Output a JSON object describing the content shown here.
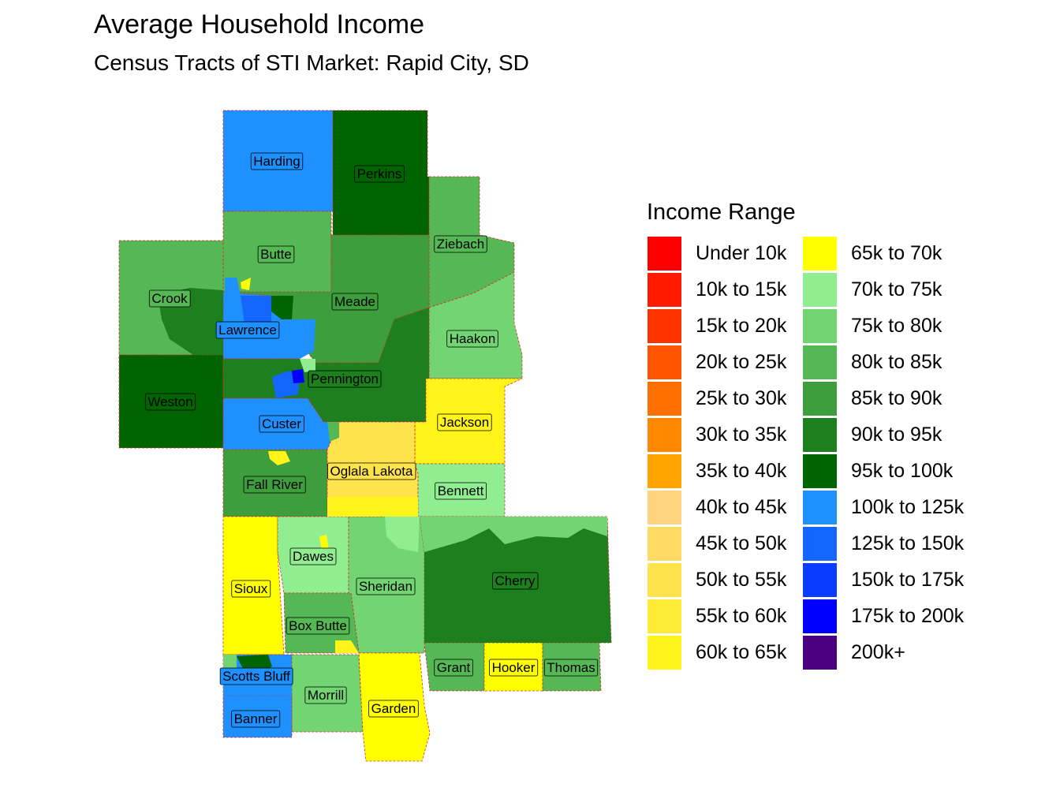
{
  "title": "Average Household Income",
  "subtitle": "Census Tracts of STI Market: Rapid City, SD",
  "legend": {
    "title": "Income Range",
    "items": [
      {
        "label": "Under 10k",
        "color": "#FF0000"
      },
      {
        "label": "10k to 15k",
        "color": "#FF1A00"
      },
      {
        "label": "15k to 20k",
        "color": "#FF3300"
      },
      {
        "label": "20k to 25k",
        "color": "#FF5500"
      },
      {
        "label": "25k to 30k",
        "color": "#FF7000"
      },
      {
        "label": "30k to 35k",
        "color": "#FF8800"
      },
      {
        "label": "35k to 40k",
        "color": "#FFA500"
      },
      {
        "label": "40k to 45k",
        "color": "#FFD47F"
      },
      {
        "label": "45k to 50k",
        "color": "#FFDB66"
      },
      {
        "label": "50k to 55k",
        "color": "#FFE34D"
      },
      {
        "label": "55k to 60k",
        "color": "#FFEA33"
      },
      {
        "label": "60k to 65k",
        "color": "#FFF41A"
      },
      {
        "label": "65k to 70k",
        "color": "#FFFF00"
      },
      {
        "label": "70k to 75k",
        "color": "#90EE90"
      },
      {
        "label": "75k to 80k",
        "color": "#72D572"
      },
      {
        "label": "80k to 85k",
        "color": "#55B855"
      },
      {
        "label": "85k to 90k",
        "color": "#3E9E3E"
      },
      {
        "label": "90k to 95k",
        "color": "#1E7F1E"
      },
      {
        "label": "95k to 100k",
        "color": "#006400"
      },
      {
        "label": "100k to 125k",
        "color": "#1E90FF"
      },
      {
        "label": "125k to 150k",
        "color": "#1466FF"
      },
      {
        "label": "150k to 175k",
        "color": "#0A3CFF"
      },
      {
        "label": "175k to 200k",
        "color": "#0000FF"
      },
      {
        "label": "200k+",
        "color": "#4B0082"
      }
    ]
  },
  "counties": [
    {
      "name": "Harding",
      "color": "#1E90FF"
    },
    {
      "name": "Perkins",
      "color": "#006400"
    },
    {
      "name": "Butte",
      "color": "#55B855"
    },
    {
      "name": "Ziebach",
      "color": "#55B855"
    },
    {
      "name": "Crook",
      "color": "#55B855"
    },
    {
      "name": "Meade",
      "color": "#3E9E3E"
    },
    {
      "name": "Lawrence",
      "color": "#1E90FF"
    },
    {
      "name": "Haakon",
      "color": "#72D572"
    },
    {
      "name": "Weston",
      "color": "#006400"
    },
    {
      "name": "Pennington",
      "color": "#1E7F1E"
    },
    {
      "name": "Custer",
      "color": "#1E90FF"
    },
    {
      "name": "Jackson",
      "color": "#FFF41A"
    },
    {
      "name": "Fall River",
      "color": "#3E9E3E"
    },
    {
      "name": "Oglala Lakota",
      "color": "#FFE34D"
    },
    {
      "name": "Bennett",
      "color": "#90EE90"
    },
    {
      "name": "Sioux",
      "color": "#FFFF00"
    },
    {
      "name": "Dawes",
      "color": "#90EE90"
    },
    {
      "name": "Sheridan",
      "color": "#72D572"
    },
    {
      "name": "Cherry",
      "color": "#1E7F1E"
    },
    {
      "name": "Box Butte",
      "color": "#55B855"
    },
    {
      "name": "Scotts Bluff",
      "color": "#1E90FF"
    },
    {
      "name": "Morrill",
      "color": "#72D572"
    },
    {
      "name": "Garden",
      "color": "#FFFF00"
    },
    {
      "name": "Grant",
      "color": "#55B855"
    },
    {
      "name": "Hooker",
      "color": "#FFFF00"
    },
    {
      "name": "Thomas",
      "color": "#55B855"
    },
    {
      "name": "Banner",
      "color": "#1E90FF"
    }
  ]
}
